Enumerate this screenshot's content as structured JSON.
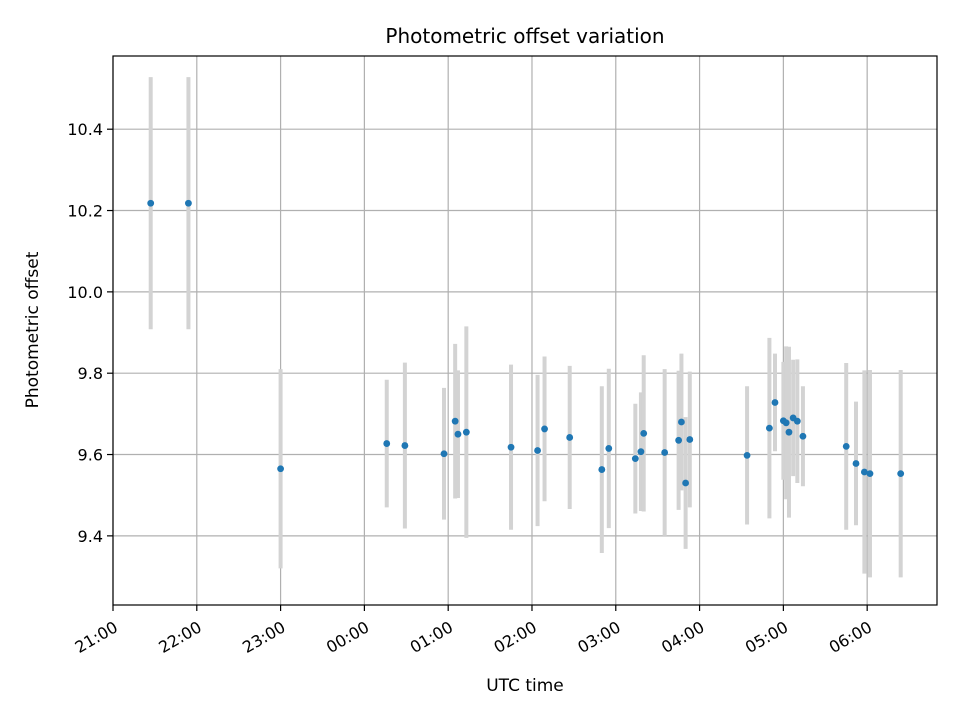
{
  "chart_data": {
    "type": "scatter",
    "title": "Photometric offset variation",
    "xlabel": "UTC time",
    "ylabel": "Photometric offset",
    "xlim": [
      "21:00",
      "06:50"
    ],
    "ylim": [
      9.23,
      10.58
    ],
    "grid": true,
    "x_ticks": [
      "21:00",
      "22:00",
      "23:00",
      "00:00",
      "01:00",
      "02:00",
      "03:00",
      "04:00",
      "05:00",
      "06:00"
    ],
    "y_ticks": [
      9.4,
      9.6,
      9.8,
      10.0,
      10.2,
      10.4
    ],
    "colors": {
      "marker": "#1f77b4",
      "errorbar": "#d3d3d3",
      "grid": "#b0b0b0"
    },
    "points": [
      {
        "time": "21:27",
        "y": 10.218,
        "err": 0.31
      },
      {
        "time": "21:54",
        "y": 10.218,
        "err": 0.31
      },
      {
        "time": "23:00",
        "y": 9.565,
        "err": 0.245
      },
      {
        "time": "00:16",
        "y": 9.627,
        "err": 0.157
      },
      {
        "time": "00:29",
        "y": 9.622,
        "err": 0.204
      },
      {
        "time": "00:57",
        "y": 9.602,
        "err": 0.162
      },
      {
        "time": "01:05",
        "y": 9.682,
        "err": 0.19
      },
      {
        "time": "01:07",
        "y": 9.65,
        "err": 0.157
      },
      {
        "time": "01:13",
        "y": 9.655,
        "err": 0.26
      },
      {
        "time": "01:45",
        "y": 9.618,
        "err": 0.203
      },
      {
        "time": "02:04",
        "y": 9.61,
        "err": 0.186
      },
      {
        "time": "02:09",
        "y": 9.663,
        "err": 0.178
      },
      {
        "time": "02:27",
        "y": 9.642,
        "err": 0.176
      },
      {
        "time": "02:50",
        "y": 9.563,
        "err": 0.205
      },
      {
        "time": "02:55",
        "y": 9.615,
        "err": 0.196
      },
      {
        "time": "03:14",
        "y": 9.59,
        "err": 0.135
      },
      {
        "time": "03:18",
        "y": 9.607,
        "err": 0.146
      },
      {
        "time": "03:20",
        "y": 9.652,
        "err": 0.192
      },
      {
        "time": "03:35",
        "y": 9.605,
        "err": 0.205
      },
      {
        "time": "03:45",
        "y": 9.635,
        "err": 0.171
      },
      {
        "time": "03:47",
        "y": 9.68,
        "err": 0.168
      },
      {
        "time": "03:50",
        "y": 9.53,
        "err": 0.162
      },
      {
        "time": "03:53",
        "y": 9.637,
        "err": 0.167
      },
      {
        "time": "04:34",
        "y": 9.598,
        "err": 0.17
      },
      {
        "time": "04:50",
        "y": 9.665,
        "err": 0.222
      },
      {
        "time": "04:54",
        "y": 9.728,
        "err": 0.12
      },
      {
        "time": "05:00",
        "y": 9.683,
        "err": 0.145
      },
      {
        "time": "05:02",
        "y": 9.678,
        "err": 0.188
      },
      {
        "time": "05:04",
        "y": 9.655,
        "err": 0.21
      },
      {
        "time": "05:07",
        "y": 9.69,
        "err": 0.143
      },
      {
        "time": "05:10",
        "y": 9.682,
        "err": 0.152
      },
      {
        "time": "05:14",
        "y": 9.645,
        "err": 0.123
      },
      {
        "time": "05:45",
        "y": 9.62,
        "err": 0.205
      },
      {
        "time": "05:52",
        "y": 9.578,
        "err": 0.152
      },
      {
        "time": "05:58",
        "y": 9.557,
        "err": 0.25
      },
      {
        "time": "06:02",
        "y": 9.553,
        "err": 0.255
      },
      {
        "time": "06:24",
        "y": 9.553,
        "err": 0.255
      }
    ]
  }
}
